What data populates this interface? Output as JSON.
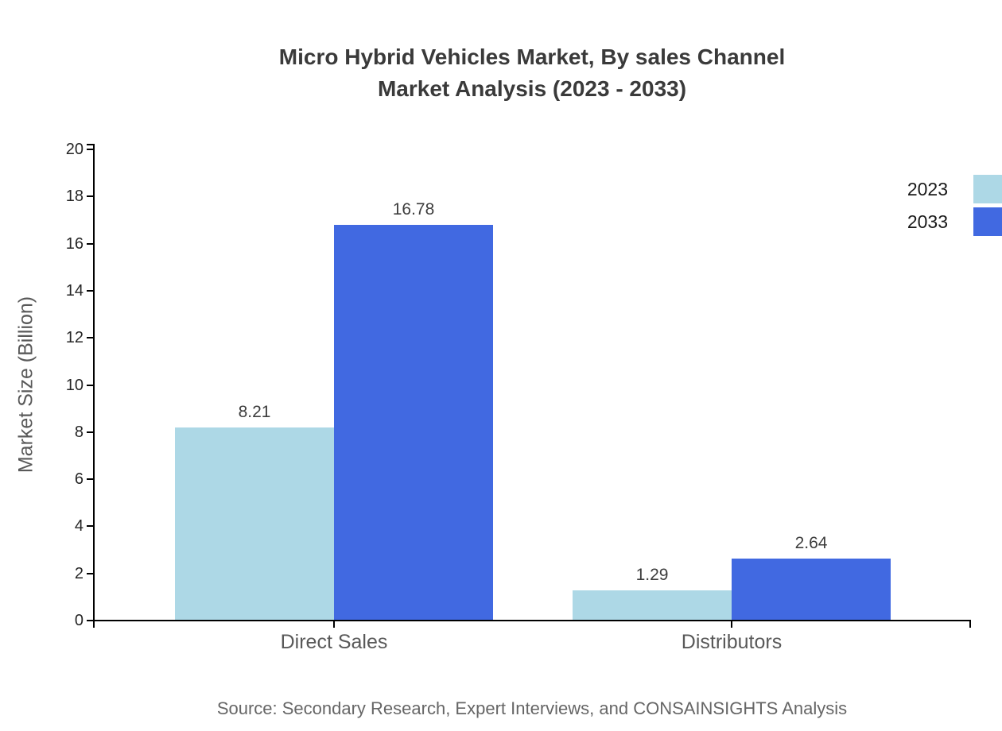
{
  "page": {
    "background": "#ffffff"
  },
  "chart_data": {
    "type": "bar",
    "title_line1": "Micro Hybrid Vehicles Market, By sales Channel",
    "title_line2": "Market Analysis (2023 - 2033)",
    "categories": [
      "Direct Sales",
      "Distributors"
    ],
    "series": [
      {
        "name": "2023",
        "color": "#add8e6",
        "values": [
          8.21,
          1.29
        ]
      },
      {
        "name": "2033",
        "color": "#4169e1",
        "values": [
          16.78,
          2.64
        ]
      }
    ],
    "xlabel": "",
    "ylabel": "Market Size (Billion)",
    "ylim": [
      0,
      20
    ],
    "ytick_step": 2,
    "ytick_labels": [
      "0",
      "2",
      "4",
      "6",
      "8",
      "10",
      "12",
      "14",
      "16",
      "18",
      "20"
    ],
    "value_labels": [
      [
        "8.21",
        "1.29"
      ],
      [
        "16.78",
        "2.64"
      ]
    ],
    "grid": false,
    "legend_position": "top-right",
    "source": "Source: Secondary Research, Expert Interviews, and CONSAINSIGHTS Analysis"
  },
  "colors": {
    "title": "#3a3a3a",
    "axis": "#000000",
    "tick_label": "#262626",
    "category_label": "#595959",
    "value_label": "#3d3d3d",
    "source": "#666666",
    "series_2023": "#add8e6",
    "series_2033": "#4169e1"
  }
}
